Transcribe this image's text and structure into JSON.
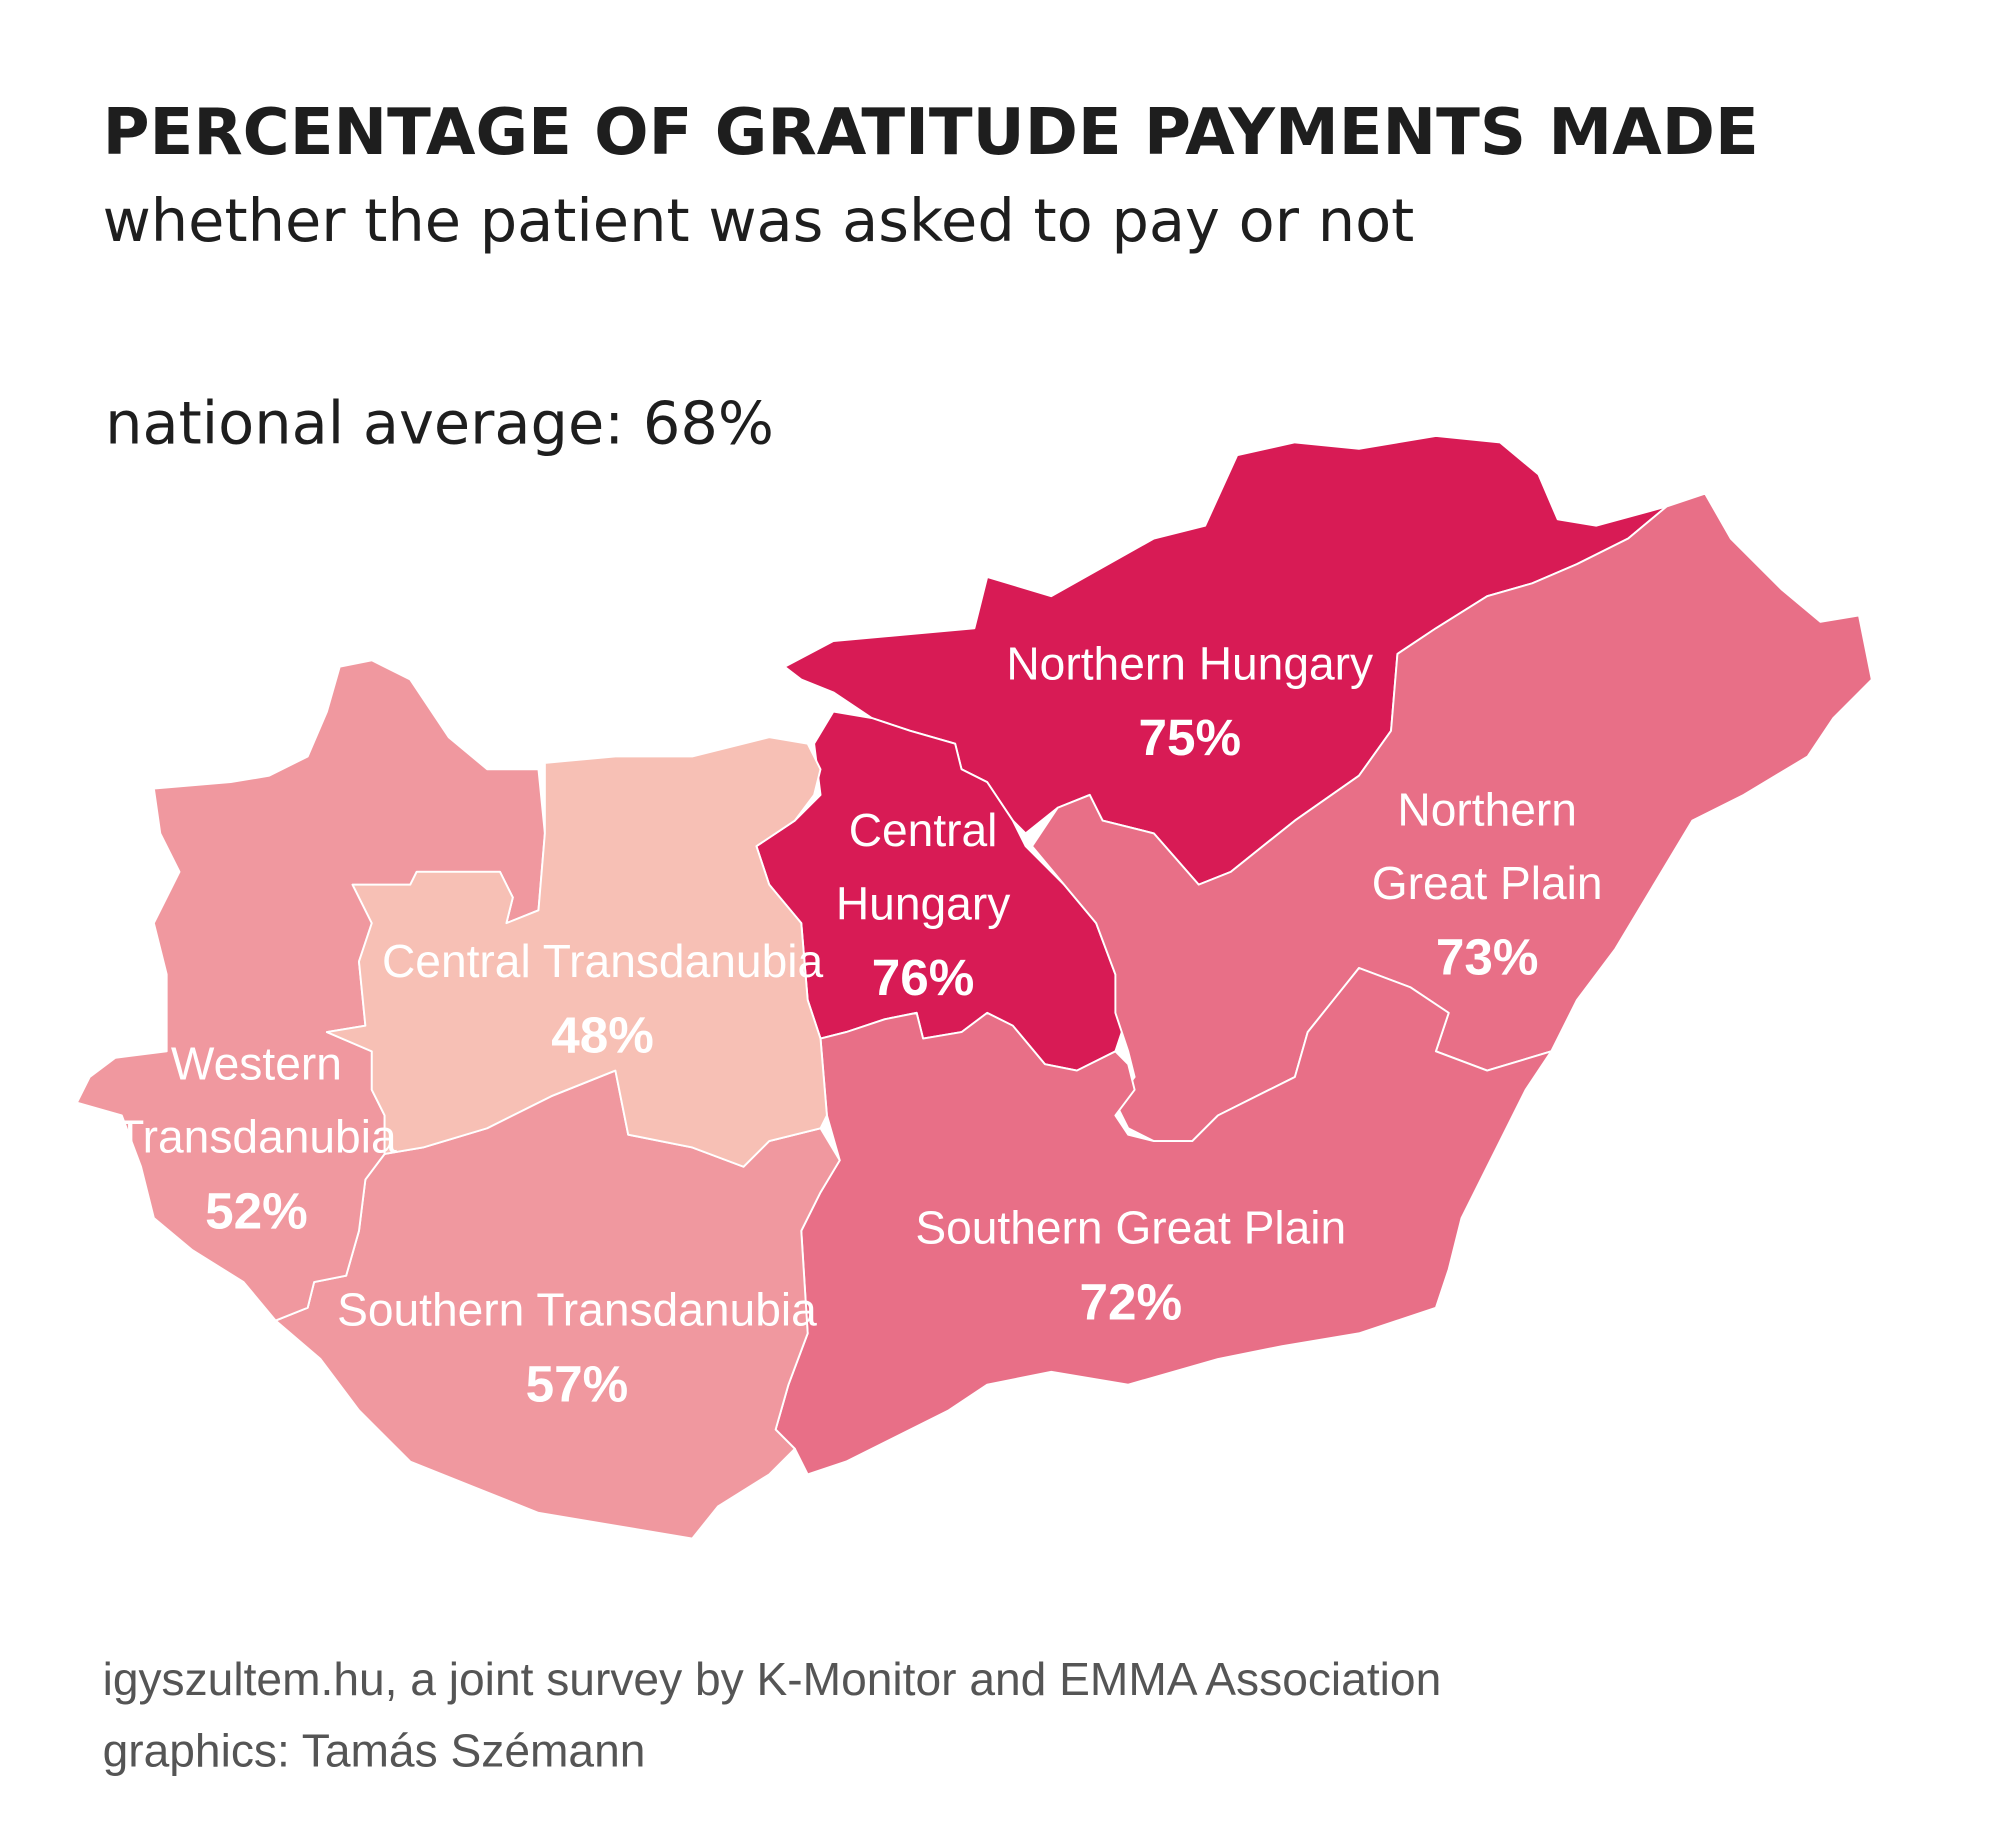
{
  "chart_data": {
    "type": "choropleth",
    "title": "PERCENTAGE OF GRATITUDE PAYMENTS MADE",
    "subtitle": "whether the patient was asked to pay or not",
    "annotation": "national average: 68%",
    "regions": [
      {
        "name_lines": [
          "Northern Hungary"
        ],
        "value": 75,
        "value_label": "75%",
        "color": "#d81b55"
      },
      {
        "name_lines": [
          "Central",
          "Hungary"
        ],
        "value": 76,
        "value_label": "76%",
        "color": "#d81b55"
      },
      {
        "name_lines": [
          "Northern",
          "Great Plain"
        ],
        "value": 73,
        "value_label": "73%",
        "color": "#e86f87"
      },
      {
        "name_lines": [
          "Southern Great Plain"
        ],
        "value": 72,
        "value_label": "72%",
        "color": "#e86f87"
      },
      {
        "name_lines": [
          "Southern Transdanubia"
        ],
        "value": 57,
        "value_label": "57%",
        "color": "#f0989f"
      },
      {
        "name_lines": [
          "Western",
          "Transdanubia"
        ],
        "value": 52,
        "value_label": "52%",
        "color": "#f0989f"
      },
      {
        "name_lines": [
          "Central Transdanubia"
        ],
        "value": 48,
        "value_label": "48%",
        "color": "#f7c0b5"
      }
    ],
    "source_lines": [
      "igyszultem.hu, a joint survey by K-Monitor and EMMA Association",
      "graphics: Tamás Szémann"
    ]
  }
}
